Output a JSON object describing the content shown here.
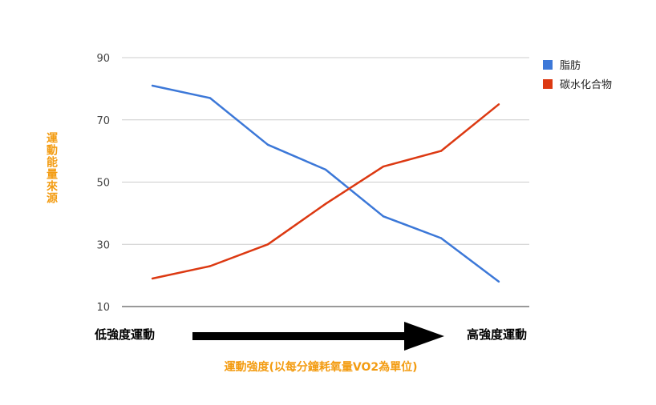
{
  "chart_data": {
    "type": "line",
    "x": [
      1,
      2,
      3,
      4,
      5,
      6,
      7
    ],
    "series": [
      {
        "name": "脂肪",
        "color": "#3c78d8",
        "values": [
          81,
          77,
          62,
          54,
          39,
          32,
          18
        ]
      },
      {
        "name": "碳水化合物",
        "color": "#dc3912",
        "values": [
          19,
          23,
          30,
          43,
          55,
          60,
          75
        ]
      }
    ],
    "ylim": [
      10,
      90
    ],
    "yticks": [
      "90",
      "70",
      "50",
      "30",
      "10"
    ],
    "ylabel": "運動能量來源",
    "xlabel": "運動強度(以每分鐘耗氧量VO2為單位)",
    "x_start_label": "低強度運動",
    "x_end_label": "高強度運動",
    "legend_position": "top-right",
    "grid": true,
    "colors": {
      "axis_label": "#f39c12",
      "arrow": "#000000",
      "grid": "#cccccc"
    }
  }
}
